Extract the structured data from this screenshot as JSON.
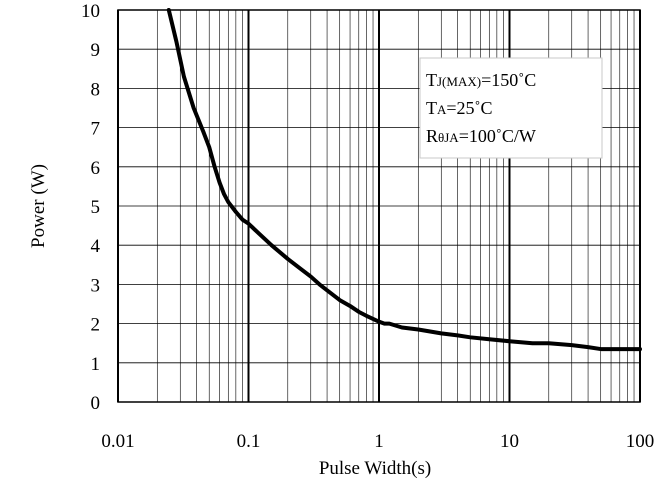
{
  "chart_data": {
    "type": "line",
    "title": "",
    "xlabel": "Pulse Width(s)",
    "ylabel": "Power (W)",
    "x_scale": "log",
    "xlim": [
      0.01,
      100
    ],
    "ylim": [
      0,
      10
    ],
    "x_ticks": [
      0.01,
      0.1,
      1,
      10,
      100
    ],
    "x_tick_labels": [
      "0.01",
      "0.1",
      "1",
      "10",
      "100"
    ],
    "y_ticks": [
      0,
      1,
      2,
      3,
      4,
      5,
      6,
      7,
      8,
      9,
      10
    ],
    "y_tick_labels": [
      "0",
      "1",
      "2",
      "3",
      "4",
      "5",
      "6",
      "7",
      "8",
      "9",
      "10"
    ],
    "grid": true,
    "series": [
      {
        "color": "#000000",
        "x": [
          0.0245,
          0.028,
          0.032,
          0.038,
          0.045,
          0.05,
          0.055,
          0.06,
          0.065,
          0.07,
          0.08,
          0.09,
          0.1,
          0.12,
          0.15,
          0.2,
          0.25,
          0.3,
          0.35,
          0.4,
          0.5,
          0.6,
          0.7,
          0.8,
          1.0,
          1.1,
          1.2,
          1.5,
          2.0,
          3.0,
          4.0,
          5.0,
          7.0,
          10.0,
          15.0,
          20.0,
          30.0,
          40.0,
          50.0,
          100.0
        ],
        "y": [
          10,
          9.2,
          8.3,
          7.5,
          6.9,
          6.5,
          6.0,
          5.6,
          5.3,
          5.1,
          4.85,
          4.65,
          4.55,
          4.3,
          4.0,
          3.65,
          3.4,
          3.2,
          3.0,
          2.85,
          2.6,
          2.45,
          2.3,
          2.2,
          2.05,
          2.0,
          2.0,
          1.9,
          1.85,
          1.75,
          1.7,
          1.65,
          1.6,
          1.55,
          1.5,
          1.5,
          1.45,
          1.4,
          1.35,
          1.35
        ]
      }
    ],
    "annotations": [
      {
        "main": "T",
        "sub": "J(MAX)",
        "rest": "=150˚C"
      },
      {
        "main": "T",
        "sub": "A",
        "rest": "=25˚C"
      },
      {
        "main": "R",
        "sub": "θJA",
        "rest": "=100˚C/W"
      }
    ],
    "annotation_border_color": "#c8c8c8",
    "grid_color": "#000000"
  }
}
